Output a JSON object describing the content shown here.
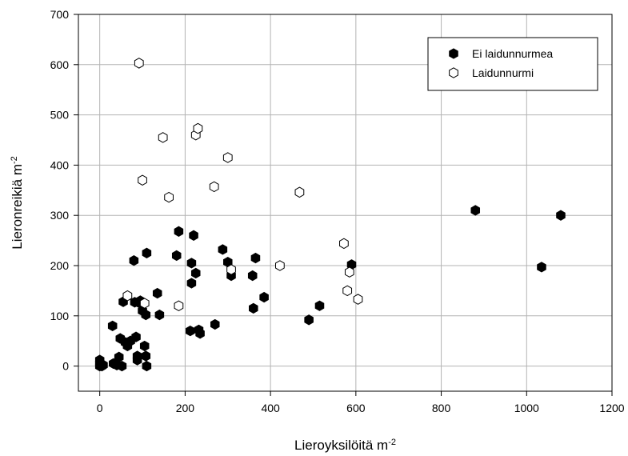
{
  "chart_data": {
    "type": "scatter",
    "xlabel": {
      "base": "Lieroyksilöitä m",
      "sup": "-2"
    },
    "ylabel": {
      "base": "Lieronreikiä m",
      "sup": "-2"
    },
    "xlim": [
      -50,
      1200
    ],
    "ylim": [
      -50,
      700
    ],
    "xticks": [
      "0",
      "200",
      "400",
      "600",
      "800",
      "1000",
      "1200"
    ],
    "yticks": [
      "0",
      "100",
      "200",
      "300",
      "400",
      "500",
      "600",
      "700"
    ],
    "grid": true,
    "legend_position": "top-right",
    "series": [
      {
        "name": "Ei laidunnurmea",
        "marker": "filled-hexagon",
        "color": "#000000",
        "points": [
          [
            0,
            0
          ],
          [
            0,
            5
          ],
          [
            0,
            12
          ],
          [
            5,
            0
          ],
          [
            8,
            2
          ],
          [
            30,
            80
          ],
          [
            32,
            5
          ],
          [
            40,
            2
          ],
          [
            45,
            18
          ],
          [
            48,
            55
          ],
          [
            52,
            0
          ],
          [
            55,
            128
          ],
          [
            60,
            47
          ],
          [
            65,
            40
          ],
          [
            72,
            50
          ],
          [
            80,
            210
          ],
          [
            82,
            127
          ],
          [
            85,
            58
          ],
          [
            88,
            12
          ],
          [
            88,
            20
          ],
          [
            92,
            126
          ],
          [
            95,
            130
          ],
          [
            100,
            110
          ],
          [
            105,
            40
          ],
          [
            108,
            102
          ],
          [
            108,
            20
          ],
          [
            110,
            0
          ],
          [
            110,
            225
          ],
          [
            135,
            145
          ],
          [
            140,
            102
          ],
          [
            180,
            220
          ],
          [
            185,
            268
          ],
          [
            212,
            70
          ],
          [
            215,
            205
          ],
          [
            215,
            165
          ],
          [
            220,
            260
          ],
          [
            225,
            185
          ],
          [
            232,
            72
          ],
          [
            235,
            65
          ],
          [
            270,
            83
          ],
          [
            288,
            232
          ],
          [
            300,
            207
          ],
          [
            308,
            180
          ],
          [
            358,
            180
          ],
          [
            360,
            115
          ],
          [
            365,
            215
          ],
          [
            385,
            137
          ],
          [
            490,
            92
          ],
          [
            515,
            120
          ],
          [
            590,
            202
          ],
          [
            880,
            310
          ],
          [
            1035,
            197
          ],
          [
            1080,
            300
          ]
        ]
      },
      {
        "name": "Laidunnurmi",
        "marker": "open-hexagon",
        "color": "#000000",
        "points": [
          [
            65,
            140
          ],
          [
            92,
            603
          ],
          [
            100,
            370
          ],
          [
            105,
            125
          ],
          [
            148,
            455
          ],
          [
            162,
            336
          ],
          [
            185,
            120
          ],
          [
            225,
            460
          ],
          [
            230,
            473
          ],
          [
            268,
            357
          ],
          [
            300,
            415
          ],
          [
            308,
            192
          ],
          [
            422,
            200
          ],
          [
            468,
            346
          ],
          [
            572,
            244
          ],
          [
            580,
            150
          ],
          [
            585,
            187
          ],
          [
            605,
            133
          ]
        ]
      }
    ]
  }
}
